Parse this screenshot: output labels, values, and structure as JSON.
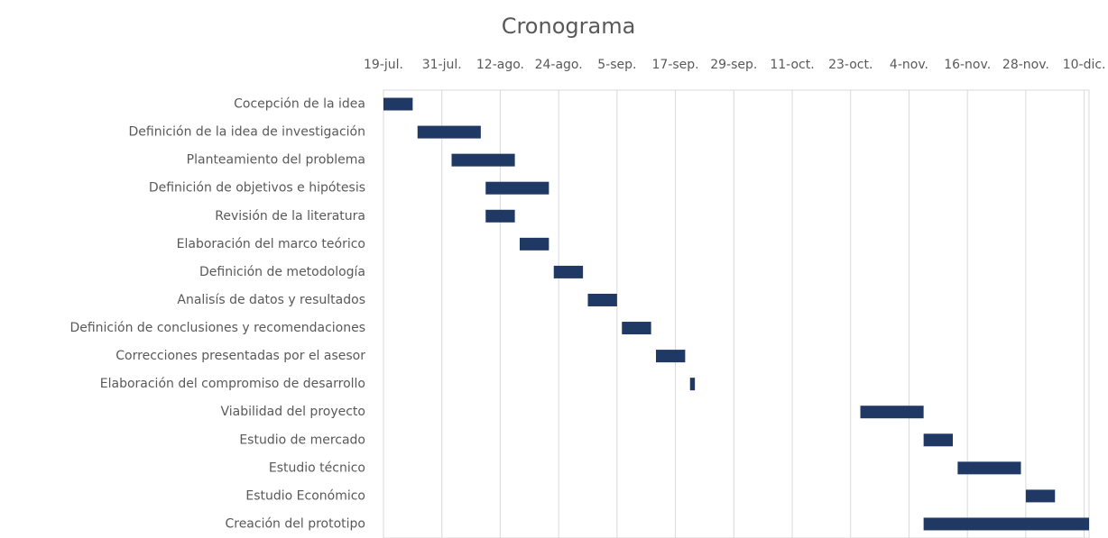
{
  "chart_data": {
    "type": "gantt",
    "title": "Cronograma",
    "categories": [
      "Cocepción de la idea",
      "Definición de la idea de investigación",
      "Planteamiento del problema",
      "Definición de objetivos e hipótesis",
      "Revisión de la literatura",
      "Elaboración del marco teórico",
      "Definición de metodología",
      "Analisís de datos y resultados",
      "Definición de conclusiones y recomendaciones",
      "Correcciones presentadas por el asesor",
      "Elaboración del compromiso de desarrollo",
      "Viabilidad del proyecto",
      "Estudio de mercado",
      "Estudio técnico",
      "Estudio Económico",
      "Creación del prototipo"
    ],
    "start": [
      0,
      7,
      14,
      21,
      21,
      28,
      35,
      42,
      49,
      56,
      63,
      98,
      111,
      118,
      132,
      111
    ],
    "duration": [
      6,
      13,
      13,
      13,
      6,
      6,
      6,
      6,
      6,
      6,
      1,
      13,
      6,
      13,
      6,
      34
    ],
    "color": "#1f3864",
    "xlim": [
      0,
      145
    ],
    "xticks": [
      {
        "value": 0,
        "label": "19-jul."
      },
      {
        "value": 12,
        "label": "31-jul."
      },
      {
        "value": 24,
        "label": "12-ago."
      },
      {
        "value": 36,
        "label": "24-ago."
      },
      {
        "value": 48,
        "label": "5-sep."
      },
      {
        "value": 60,
        "label": "17-sep."
      },
      {
        "value": 72,
        "label": "29-sep."
      },
      {
        "value": 84,
        "label": "11-oct."
      },
      {
        "value": 96,
        "label": "23-oct."
      },
      {
        "value": 108,
        "label": "4-nov."
      },
      {
        "value": 120,
        "label": "16-nov."
      },
      {
        "value": 132,
        "label": "28-nov."
      },
      {
        "value": 144,
        "label": "10-dic."
      }
    ],
    "grid": true
  }
}
